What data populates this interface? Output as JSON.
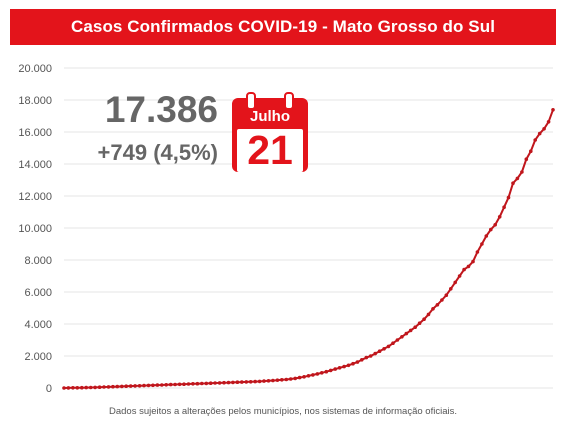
{
  "header": {
    "title": "Casos Confirmados COVID-19 - Mato Grosso do Sul"
  },
  "summary": {
    "total": "17.386",
    "increase": "+749 (4,5%)"
  },
  "calendar": {
    "month": "Julho",
    "day": "21",
    "icon": "calendar-icon"
  },
  "footnote": "Dados sujeitos a alterações pelos municípios, nos sistemas de informação oficiais.",
  "colors": {
    "accent": "#e3141b",
    "line": "#c0161c",
    "grid": "#e6e6e6"
  },
  "chart_data": {
    "type": "line",
    "title": "Casos Confirmados COVID-19 - Mato Grosso do Sul",
    "xlabel": "",
    "ylabel": "",
    "ylim": [
      0,
      20000
    ],
    "grid": true,
    "y_ticks": [
      "0",
      "2.000",
      "4.000",
      "6.000",
      "8.000",
      "10.000",
      "12.000",
      "14.000",
      "16.000",
      "18.000",
      "20.000"
    ],
    "series": [
      {
        "values": [
          0,
          5,
          10,
          15,
          20,
          25,
          30,
          40,
          50,
          60,
          70,
          80,
          90,
          100,
          110,
          120,
          130,
          140,
          150,
          160,
          170,
          180,
          190,
          200,
          210,
          220,
          230,
          240,
          250,
          260,
          270,
          280,
          290,
          300,
          310,
          320,
          330,
          340,
          350,
          360,
          370,
          380,
          390,
          400,
          415,
          430,
          450,
          470,
          490,
          510,
          530,
          560,
          600,
          650,
          700,
          760,
          820,
          880,
          950,
          1020,
          1100,
          1180,
          1260,
          1340,
          1420,
          1520,
          1620,
          1760,
          1900,
          2000,
          2150,
          2300,
          2450,
          2600,
          2800,
          3000,
          3200,
          3400,
          3600,
          3800,
          4050,
          4300,
          4600,
          4950,
          5200,
          5500,
          5800,
          6200,
          6600,
          7000,
          7400,
          7600,
          7900,
          8500,
          9000,
          9500,
          9900,
          10200,
          10700,
          11300,
          11900,
          12800,
          13100,
          13500,
          14300,
          14800,
          15500,
          15900,
          16200,
          16637,
          17386
        ]
      }
    ]
  }
}
